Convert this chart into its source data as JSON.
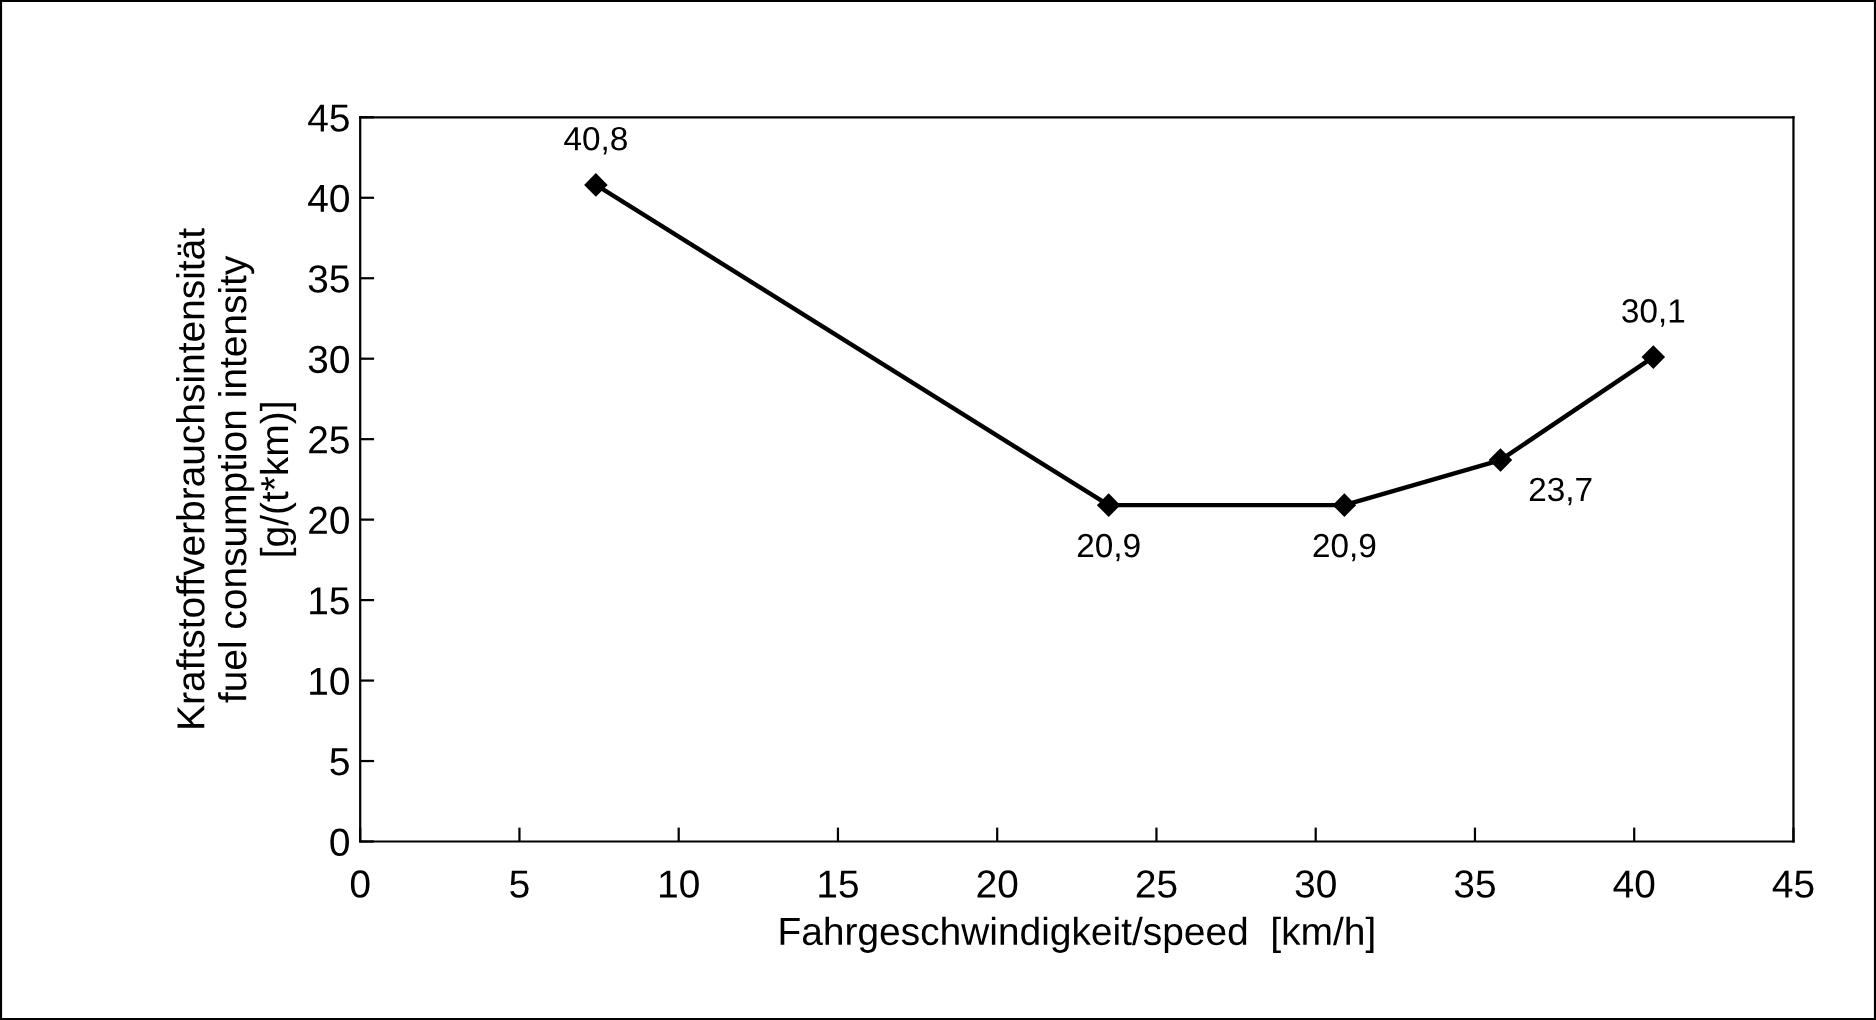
{
  "chart_data": {
    "type": "line",
    "xlabel": "Fahrgeschwindigkeit/speed  [km/h]",
    "ylabel": "Kraftstoffverbrauchsintensität\nfuel consumption intensity\n[g/(t*km)]",
    "x": [
      7.4,
      23.5,
      30.9,
      35.8,
      40.6
    ],
    "series": [
      {
        "color": "#000000",
        "values": [
          40.8,
          20.9,
          20.9,
          23.7,
          30.1
        ],
        "value_labels": [
          "40,8",
          "20,9",
          "20,9",
          "23,7",
          "30,1"
        ]
      }
    ],
    "xlim": [
      0,
      45
    ],
    "xticks": [
      0,
      5,
      10,
      15,
      20,
      25,
      30,
      35,
      40,
      45
    ],
    "ylim": [
      0,
      45
    ],
    "yticks": [
      0,
      5,
      10,
      15,
      20,
      25,
      30,
      35,
      40,
      45
    ],
    "marker": "diamond",
    "line_style": "solid"
  }
}
